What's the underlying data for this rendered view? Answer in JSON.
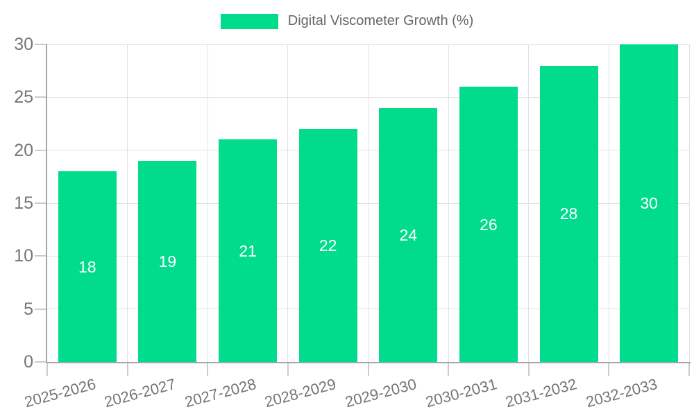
{
  "legend": {
    "series_label": "Digital Viscometer Growth (%)"
  },
  "colors": {
    "background": "#FFFFFF",
    "bar": "#00DC8C",
    "bar_label": "#FFFFFF",
    "legend_text": "#666666",
    "axis_text": "#757575",
    "gridline": "#E2E2E2",
    "tick": "#CCCCCC",
    "axis_line": "#A5A5A5"
  },
  "chart_data": {
    "type": "bar",
    "title": "Digital Viscometer Growth (%)",
    "series_name": "Digital Viscometer Growth (%)",
    "categories": [
      "2025-2026",
      "2026-2027",
      "2027-2028",
      "2028-2029",
      "2029-2030",
      "2030-2031",
      "2031-2032",
      "2032-2033"
    ],
    "values": [
      18,
      19,
      21,
      22,
      24,
      26,
      28,
      30
    ],
    "bar_value_labels": [
      "18",
      "19",
      "21",
      "22",
      "24",
      "26",
      "28",
      "30"
    ],
    "xlabel": "",
    "ylabel": "",
    "ylim": [
      0,
      30
    ],
    "y_ticks": [
      0,
      5,
      10,
      15,
      20,
      25,
      30
    ],
    "grid": true,
    "legend_position": "top",
    "x_tick_rotation_deg": -15,
    "bar_value_label_position": "middle"
  }
}
